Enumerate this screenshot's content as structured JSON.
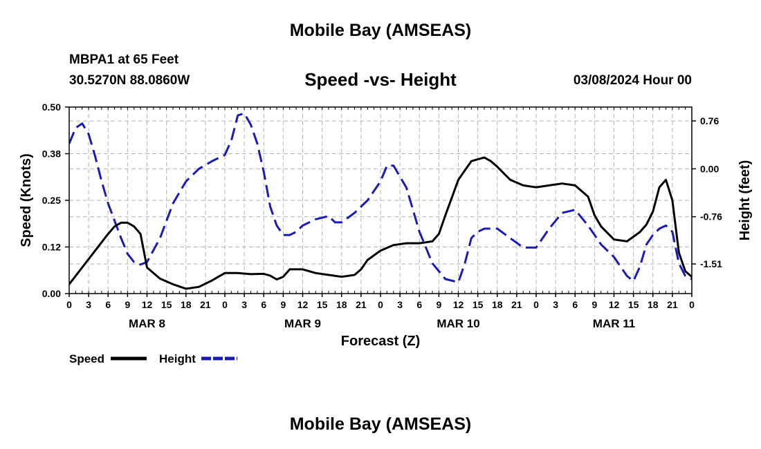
{
  "page": {
    "main_title": "Mobile Bay (AMSEAS)",
    "bottom_title": "Mobile Bay (AMSEAS)",
    "station": "MBPA1 at 65 Feet",
    "coords": "30.5270N  88.0860W",
    "runtime": "03/08/2024 Hour 00"
  },
  "chart_data": {
    "type": "line",
    "title": "Speed -vs- Height",
    "xlabel": "Forecast (Z)",
    "ylabel": "Speed (Knots)",
    "y2label": "Height (feet)",
    "xlim": [
      0,
      96
    ],
    "ylim": [
      0,
      0.5
    ],
    "y2lim": [
      -1.98,
      0.98
    ],
    "x_tick_labels": [
      "0",
      "3",
      "6",
      "9",
      "12",
      "15",
      "18",
      "21",
      "0",
      "3",
      "6",
      "9",
      "12",
      "15",
      "18",
      "21",
      "0",
      "3",
      "6",
      "9",
      "12",
      "15",
      "18",
      "21",
      "0",
      "3",
      "6",
      "9",
      "12",
      "15",
      "18",
      "21",
      "0"
    ],
    "y_tick_labels": [
      "0.00",
      "0.12",
      "0.25",
      "0.38",
      "0.50"
    ],
    "y_ticks": [
      0,
      0.125,
      0.25,
      0.375,
      0.5
    ],
    "y2_tick_labels": [
      "-1.51",
      "-0.76",
      "0.00",
      "0.76"
    ],
    "y2_ticks": [
      -1.51,
      -0.76,
      0.0,
      0.76
    ],
    "day_labels": [
      {
        "label": "MAR 8",
        "x": 12
      },
      {
        "label": "MAR 9",
        "x": 36
      },
      {
        "label": "MAR 10",
        "x": 60
      },
      {
        "label": "MAR 11",
        "x": 84
      }
    ],
    "legend": {
      "speed_label": "Speed",
      "height_label": "Height"
    },
    "colors": {
      "speed": "#000000",
      "height": "#1a1ab8",
      "grid": "#b4b4b4"
    },
    "series": [
      {
        "name": "Speed",
        "axis": "left",
        "x": [
          0,
          2,
          4,
          6,
          7,
          8,
          9,
          10,
          11,
          12,
          14,
          16,
          18,
          20,
          22,
          24,
          26,
          28,
          30,
          31,
          32,
          33,
          34,
          36,
          38,
          40,
          42,
          44,
          45,
          46,
          48,
          50,
          52,
          54,
          56,
          57,
          58,
          60,
          62,
          64,
          65,
          66,
          68,
          70,
          72,
          74,
          76,
          78,
          80,
          81,
          82,
          84,
          86,
          88,
          89,
          90,
          91,
          92,
          93,
          94,
          95,
          96
        ],
        "values": [
          0.025,
          0.07,
          0.115,
          0.16,
          0.18,
          0.19,
          0.19,
          0.18,
          0.16,
          0.07,
          0.04,
          0.025,
          0.013,
          0.018,
          0.035,
          0.055,
          0.055,
          0.052,
          0.053,
          0.048,
          0.038,
          0.045,
          0.065,
          0.065,
          0.055,
          0.05,
          0.045,
          0.05,
          0.065,
          0.09,
          0.115,
          0.13,
          0.135,
          0.135,
          0.14,
          0.16,
          0.21,
          0.305,
          0.355,
          0.365,
          0.355,
          0.34,
          0.305,
          0.29,
          0.285,
          0.29,
          0.295,
          0.29,
          0.26,
          0.21,
          0.18,
          0.145,
          0.14,
          0.165,
          0.185,
          0.22,
          0.285,
          0.305,
          0.25,
          0.11,
          0.06,
          0.045
        ]
      },
      {
        "name": "Height",
        "axis": "right",
        "x": [
          0,
          1,
          2,
          3,
          4,
          5,
          6,
          8,
          9,
          10,
          11,
          12,
          14,
          16,
          18,
          20,
          22,
          24,
          25,
          26,
          27,
          28,
          29,
          30,
          31,
          32,
          33,
          34,
          35,
          36,
          38,
          40,
          41,
          42,
          44,
          46,
          48,
          49,
          50,
          52,
          54,
          56,
          58,
          60,
          61,
          62,
          63,
          64,
          66,
          68,
          70,
          72,
          74,
          76,
          78,
          80,
          81,
          82,
          84,
          86,
          87,
          88,
          89,
          90,
          91,
          92,
          93,
          94,
          95,
          96
        ],
        "values": [
          0.4,
          0.65,
          0.72,
          0.55,
          0.2,
          -0.2,
          -0.55,
          -1.1,
          -1.35,
          -1.48,
          -1.52,
          -1.48,
          -1.1,
          -0.55,
          -0.2,
          0.0,
          0.12,
          0.22,
          0.45,
          0.85,
          0.88,
          0.7,
          0.4,
          -0.05,
          -0.6,
          -0.9,
          -1.05,
          -1.05,
          -1.0,
          -0.9,
          -0.8,
          -0.75,
          -0.85,
          -0.85,
          -0.7,
          -0.5,
          -0.2,
          0.05,
          0.05,
          -0.3,
          -1.0,
          -1.5,
          -1.75,
          -1.8,
          -1.5,
          -1.1,
          -1.0,
          -0.95,
          -0.95,
          -1.1,
          -1.25,
          -1.25,
          -0.95,
          -0.7,
          -0.65,
          -0.9,
          -1.05,
          -1.2,
          -1.4,
          -1.7,
          -1.78,
          -1.55,
          -1.2,
          -1.05,
          -0.95,
          -0.9,
          -1.0,
          -1.5,
          -1.7,
          -1.75
        ]
      }
    ]
  }
}
